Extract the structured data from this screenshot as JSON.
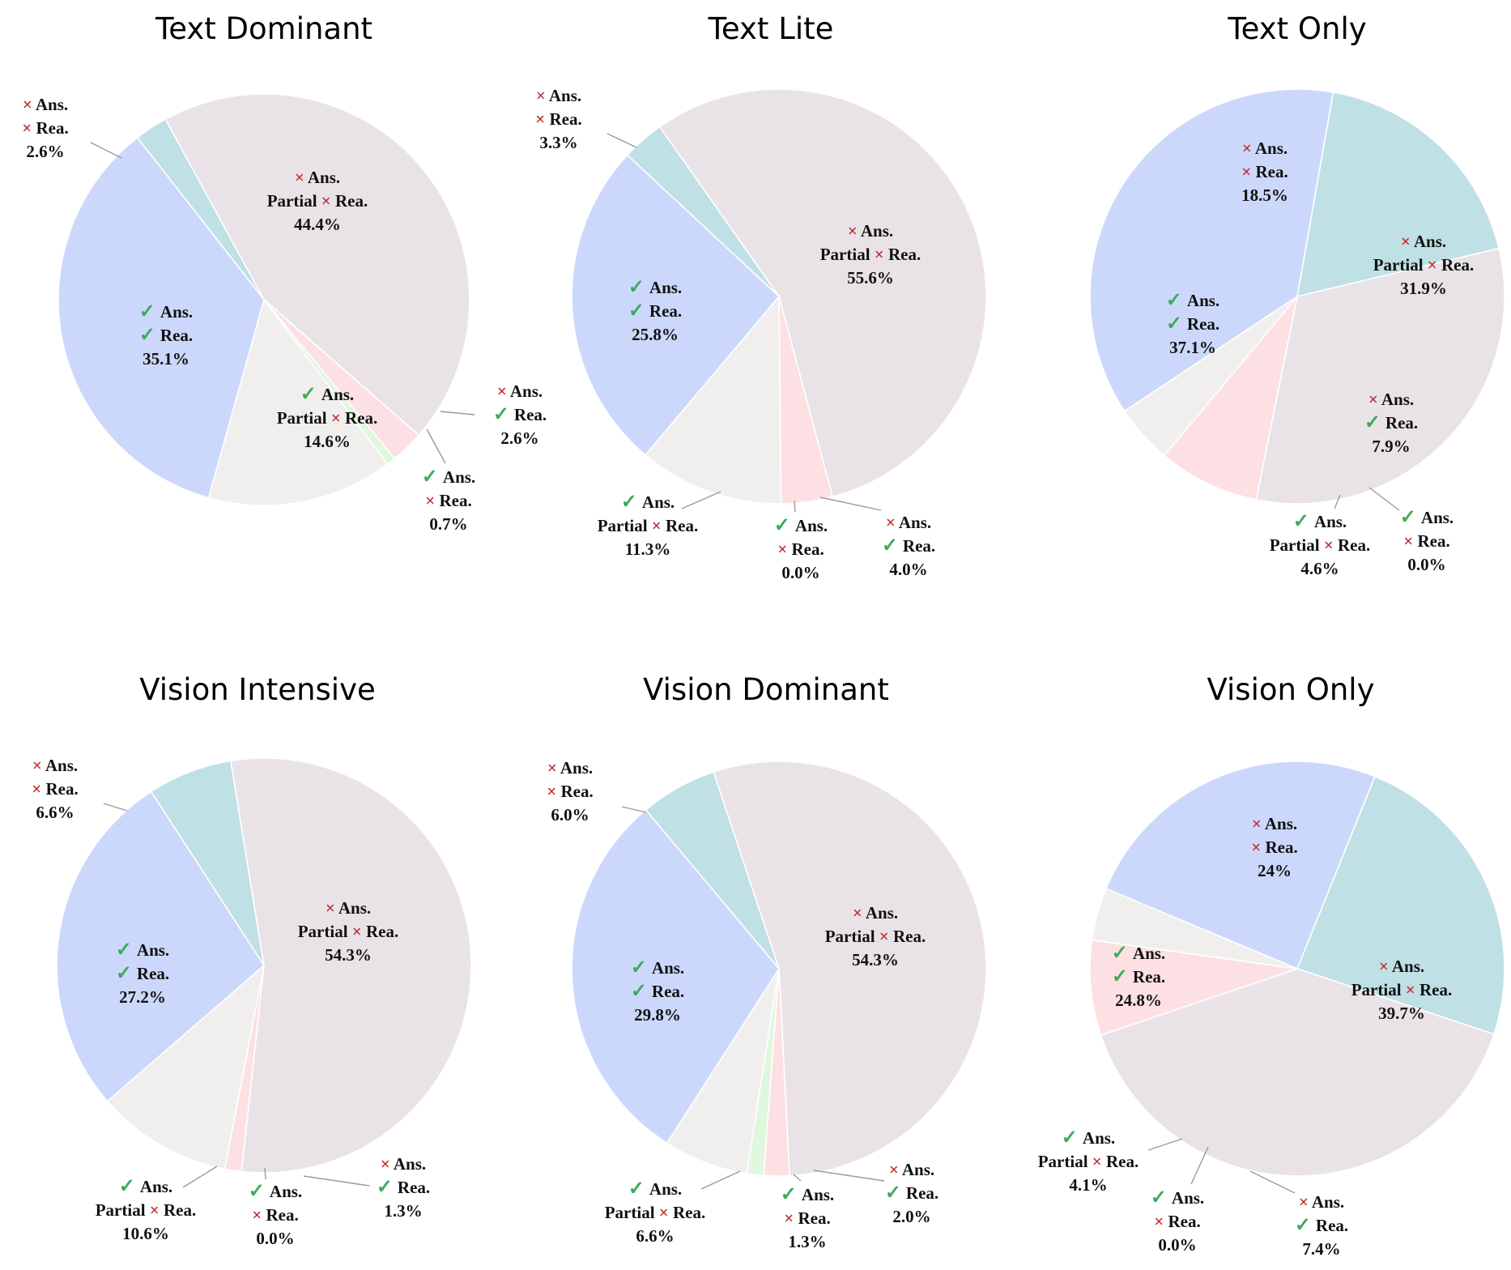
{
  "glyphs": {
    "correct": "✓",
    "wrong": "×"
  },
  "colors": {
    "wrong_ans_wrong_rea": "#bfe0e4",
    "wrong_ans_partial_rea": "#e9e3e8",
    "wrong_ans_correct_rea": "#fde0e3",
    "correct_ans_wrong_rea": "#dff7dd",
    "correct_ans_partial_rea": "#f0efed",
    "correct_ans_correct_rea": "#ccd8fb",
    "check_mark": "#3daa5a",
    "cross_mark": "#c0282b"
  },
  "chart_data": [
    {
      "type": "pie",
      "title": "Text Dominant",
      "slices": [
        {
          "ans": "wrong",
          "rea": "wrong",
          "rea_label": "Rea.",
          "value": 2.6,
          "value_label": "2.6%"
        },
        {
          "ans": "wrong",
          "rea": "wrong",
          "rea_label": "Partial × Rea.",
          "value": 44.4,
          "value_label": "44.4%"
        },
        {
          "ans": "wrong",
          "rea": "correct",
          "rea_label": "Rea.",
          "value": 2.6,
          "value_label": "2.6%"
        },
        {
          "ans": "correct",
          "rea": "wrong",
          "rea_label": "Rea.",
          "value": 0.7,
          "value_label": "0.7%"
        },
        {
          "ans": "correct",
          "rea": "wrong",
          "rea_label": "Partial × Rea.",
          "value": 14.6,
          "value_label": "14.6%"
        },
        {
          "ans": "correct",
          "rea": "correct",
          "rea_label": "Rea.",
          "value": 35.1,
          "value_label": "35.1%"
        }
      ]
    },
    {
      "type": "pie",
      "title": "Text Lite",
      "slices": [
        {
          "ans": "wrong",
          "rea": "wrong",
          "rea_label": "Rea.",
          "value": 3.3,
          "value_label": "3.3%"
        },
        {
          "ans": "wrong",
          "rea": "wrong",
          "rea_label": "Partial × Rea.",
          "value": 55.6,
          "value_label": "55.6%"
        },
        {
          "ans": "wrong",
          "rea": "correct",
          "rea_label": "Rea.",
          "value": 4.0,
          "value_label": "4.0%"
        },
        {
          "ans": "correct",
          "rea": "wrong",
          "rea_label": "Rea.",
          "value": 0.0,
          "value_label": "0.0%"
        },
        {
          "ans": "correct",
          "rea": "wrong",
          "rea_label": "Partial × Rea.",
          "value": 11.3,
          "value_label": "11.3%"
        },
        {
          "ans": "correct",
          "rea": "correct",
          "rea_label": "Rea.",
          "value": 25.8,
          "value_label": "25.8%"
        }
      ]
    },
    {
      "type": "pie",
      "title": "Text Only",
      "slices": [
        {
          "ans": "wrong",
          "rea": "wrong",
          "rea_label": "Rea.",
          "value": 18.5,
          "value_label": "18.5%"
        },
        {
          "ans": "wrong",
          "rea": "wrong",
          "rea_label": "Partial × Rea.",
          "value": 31.9,
          "value_label": "31.9%"
        },
        {
          "ans": "wrong",
          "rea": "correct",
          "rea_label": "Rea.",
          "value": 7.9,
          "value_label": "7.9%"
        },
        {
          "ans": "correct",
          "rea": "wrong",
          "rea_label": "Rea.",
          "value": 0.0,
          "value_label": "0.0%"
        },
        {
          "ans": "correct",
          "rea": "wrong",
          "rea_label": "Partial × Rea.",
          "value": 4.6,
          "value_label": "4.6%"
        },
        {
          "ans": "correct",
          "rea": "correct",
          "rea_label": "Rea.",
          "value": 37.1,
          "value_label": "37.1%"
        }
      ]
    },
    {
      "type": "pie",
      "title": "Vision Intensive",
      "slices": [
        {
          "ans": "wrong",
          "rea": "wrong",
          "rea_label": "Rea.",
          "value": 6.6,
          "value_label": "6.6%"
        },
        {
          "ans": "wrong",
          "rea": "wrong",
          "rea_label": "Partial × Rea.",
          "value": 54.3,
          "value_label": "54.3%"
        },
        {
          "ans": "wrong",
          "rea": "correct",
          "rea_label": "Rea.",
          "value": 1.3,
          "value_label": "1.3%"
        },
        {
          "ans": "correct",
          "rea": "wrong",
          "rea_label": "Rea.",
          "value": 0.0,
          "value_label": "0.0%"
        },
        {
          "ans": "correct",
          "rea": "wrong",
          "rea_label": "Partial × Rea.",
          "value": 10.6,
          "value_label": "10.6%"
        },
        {
          "ans": "correct",
          "rea": "correct",
          "rea_label": "Rea.",
          "value": 27.2,
          "value_label": "27.2%"
        }
      ]
    },
    {
      "type": "pie",
      "title": "Vision Dominant",
      "slices": [
        {
          "ans": "wrong",
          "rea": "wrong",
          "rea_label": "Rea.",
          "value": 6.0,
          "value_label": "6.0%"
        },
        {
          "ans": "wrong",
          "rea": "wrong",
          "rea_label": "Partial × Rea.",
          "value": 54.3,
          "value_label": "54.3%"
        },
        {
          "ans": "wrong",
          "rea": "correct",
          "rea_label": "Rea.",
          "value": 2.0,
          "value_label": "2.0%"
        },
        {
          "ans": "correct",
          "rea": "wrong",
          "rea_label": "Rea.",
          "value": 1.3,
          "value_label": "1.3%"
        },
        {
          "ans": "correct",
          "rea": "wrong",
          "rea_label": "Partial × Rea.",
          "value": 6.6,
          "value_label": "6.6%"
        },
        {
          "ans": "correct",
          "rea": "correct",
          "rea_label": "Rea.",
          "value": 29.8,
          "value_label": "29.8%"
        }
      ]
    },
    {
      "type": "pie",
      "title": "Vision Only",
      "slices": [
        {
          "ans": "wrong",
          "rea": "wrong",
          "rea_label": "Rea.",
          "value": 24,
          "value_label": "24%"
        },
        {
          "ans": "wrong",
          "rea": "wrong",
          "rea_label": "Partial × Rea.",
          "value": 39.7,
          "value_label": "39.7%"
        },
        {
          "ans": "wrong",
          "rea": "correct",
          "rea_label": "Rea.",
          "value": 7.4,
          "value_label": "7.4%"
        },
        {
          "ans": "correct",
          "rea": "wrong",
          "rea_label": "Rea.",
          "value": 0.0,
          "value_label": "0.0%"
        },
        {
          "ans": "correct",
          "rea": "wrong",
          "rea_label": "Partial × Rea.",
          "value": 4.1,
          "value_label": "4.1%"
        },
        {
          "ans": "correct",
          "rea": "correct",
          "rea_label": "Rea.",
          "value": 24.8,
          "value_label": "24.8%"
        }
      ]
    }
  ]
}
